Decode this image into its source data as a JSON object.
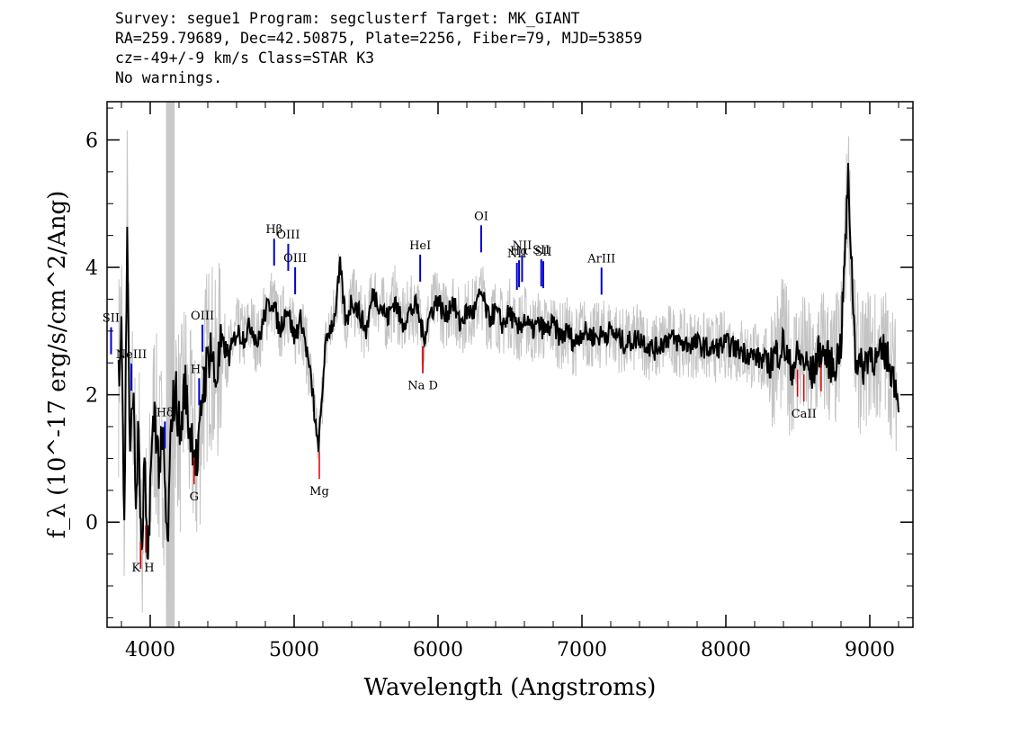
{
  "header": {
    "line1": "Survey: segue1 Program: segclusterf Target: MK_GIANT",
    "line2": "RA=259.79689, Dec=42.50875, Plate=2256, Fiber=79, MJD=53859",
    "line3": "cz=-49+/-9 km/s Class=STAR K3",
    "line4": "No warnings."
  },
  "chart_data": {
    "type": "line",
    "xlabel": "Wavelength (Angstroms)",
    "ylabel": "f_λ (10^-17 erg/s/cm^2/Ang)",
    "xlim": [
      3700,
      9300
    ],
    "ylim": [
      -1.65,
      6.6
    ],
    "x_ticks": [
      4000,
      5000,
      6000,
      7000,
      8000,
      9000
    ],
    "y_ticks": [
      0,
      2,
      4,
      6
    ],
    "x_tick_labels": [
      "4000",
      "5000",
      "6000",
      "7000",
      "8000",
      "9000"
    ],
    "y_tick_labels": [
      "0",
      "2",
      "4",
      "6"
    ],
    "masked_band": [
      4110,
      4170
    ],
    "series": [
      {
        "color": "#000000",
        "x": [
          3780,
          3800,
          3820,
          3840,
          3860,
          3880,
          3900,
          3920,
          3940,
          3960,
          3980,
          4000,
          4030,
          4060,
          4090,
          4120,
          4150,
          4180,
          4210,
          4240,
          4270,
          4300,
          4330,
          4360,
          4390,
          4420,
          4450,
          4500,
          4550,
          4600,
          4650,
          4700,
          4750,
          4800,
          4850,
          4900,
          4950,
          5000,
          5050,
          5100,
          5130,
          5160,
          5175,
          5190,
          5210,
          5240,
          5280,
          5320,
          5360,
          5400,
          5450,
          5500,
          5550,
          5600,
          5650,
          5700,
          5750,
          5800,
          5850,
          5900,
          5950,
          6000,
          6050,
          6100,
          6150,
          6200,
          6250,
          6300,
          6350,
          6400,
          6450,
          6500,
          6550,
          6600,
          6650,
          6700,
          6750,
          6800,
          6850,
          6900,
          6950,
          7000,
          7100,
          7200,
          7300,
          7400,
          7500,
          7600,
          7700,
          7800,
          7900,
          8000,
          8100,
          8200,
          8300,
          8400,
          8450,
          8500,
          8550,
          8600,
          8650,
          8700,
          8750,
          8800,
          8850,
          8900,
          8950,
          9000,
          9050,
          9100,
          9150,
          9200
        ],
        "y": [
          2.3,
          3.4,
          -0.2,
          4.8,
          0.8,
          2.2,
          0.3,
          1.5,
          -0.8,
          1.0,
          -0.9,
          0.6,
          1.8,
          0.9,
          1.2,
          -0.5,
          1.8,
          2.0,
          1.3,
          2.2,
          1.5,
          1.3,
          0.8,
          2.0,
          2.4,
          2.8,
          2.2,
          2.8,
          2.6,
          3.0,
          2.9,
          3.1,
          2.8,
          3.3,
          3.5,
          3.0,
          3.4,
          2.9,
          3.2,
          2.5,
          2.0,
          1.2,
          1.3,
          1.8,
          2.6,
          3.0,
          3.2,
          4.0,
          3.1,
          3.5,
          3.3,
          3.0,
          3.6,
          3.4,
          3.2,
          3.5,
          3.1,
          3.3,
          3.4,
          2.9,
          3.3,
          3.5,
          3.2,
          3.5,
          3.1,
          3.3,
          3.3,
          3.6,
          3.2,
          3.3,
          3.1,
          3.3,
          3.0,
          3.2,
          3.0,
          3.1,
          3.0,
          3.1,
          2.9,
          3.0,
          2.8,
          3.0,
          2.9,
          3.0,
          2.8,
          2.9,
          2.7,
          2.9,
          2.8,
          2.8,
          2.7,
          2.8,
          2.7,
          2.6,
          2.5,
          2.8,
          2.4,
          2.6,
          2.5,
          2.3,
          2.7,
          2.6,
          2.4,
          2.8,
          5.4,
          2.6,
          2.4,
          2.7,
          2.5,
          2.7,
          2.4,
          2.0
        ]
      }
    ],
    "emission_lines": [
      {
        "name": "SII",
        "x": 3728
      },
      {
        "name": "NeIII",
        "x": 3869
      },
      {
        "name": "Hδ",
        "x": 4102
      },
      {
        "name": "Hγ",
        "x": 4340
      },
      {
        "name": "OIII",
        "x": 4363
      },
      {
        "name": "Hβ",
        "x": 4861
      },
      {
        "name": "OIII",
        "x": 4959
      },
      {
        "name": "OIII",
        "x": 5007
      },
      {
        "name": "HeI",
        "x": 5876
      },
      {
        "name": "OI",
        "x": 6300
      },
      {
        "name": "NII",
        "x": 6548
      },
      {
        "name": "Hα",
        "x": 6563
      },
      {
        "name": "NII",
        "x": 6584
      },
      {
        "name": "SII",
        "x": 6717
      },
      {
        "name": "SII",
        "x": 6731
      },
      {
        "name": "ArIII",
        "x": 7136
      }
    ],
    "absorption_lines": [
      {
        "name": "K",
        "x": 3934
      },
      {
        "name": "H",
        "x": 3969
      },
      {
        "name": "G",
        "x": 4305
      },
      {
        "name": "Mg",
        "x": 5175
      },
      {
        "name": "Na",
        "x": 5894
      },
      {
        "name": "D",
        "x": 5894
      },
      {
        "name": "CaII",
        "x": 8498
      },
      {
        "name": "CaII",
        "x": 8542
      },
      {
        "name": "CaII",
        "x": 8662
      }
    ],
    "absorption_label_text": {
      "kh": "K H",
      "nad": "Na  D",
      "ca": "CaII"
    }
  }
}
